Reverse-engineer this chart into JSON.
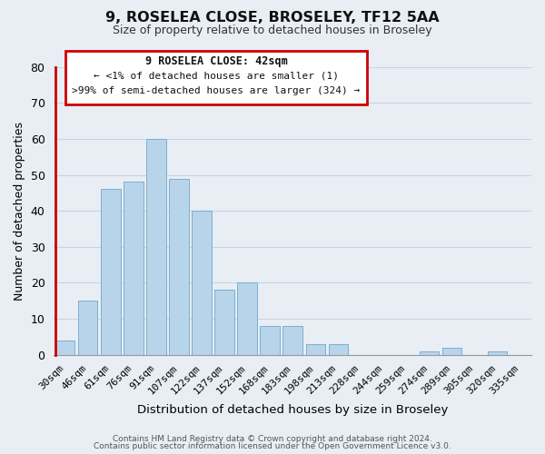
{
  "title": "9, ROSELEA CLOSE, BROSELEY, TF12 5AA",
  "subtitle": "Size of property relative to detached houses in Broseley",
  "xlabel": "Distribution of detached houses by size in Broseley",
  "ylabel": "Number of detached properties",
  "bar_labels": [
    "30sqm",
    "46sqm",
    "61sqm",
    "76sqm",
    "91sqm",
    "107sqm",
    "122sqm",
    "137sqm",
    "152sqm",
    "168sqm",
    "183sqm",
    "198sqm",
    "213sqm",
    "228sqm",
    "244sqm",
    "259sqm",
    "274sqm",
    "289sqm",
    "305sqm",
    "320sqm",
    "335sqm"
  ],
  "bar_values": [
    4,
    15,
    46,
    48,
    60,
    49,
    40,
    18,
    20,
    8,
    8,
    3,
    3,
    0,
    0,
    0,
    1,
    2,
    0,
    1,
    0
  ],
  "bar_color": "#b8d4ea",
  "bar_edge_color": "#7aafd4",
  "highlight_color": "#cc0000",
  "ylim": [
    0,
    80
  ],
  "yticks": [
    0,
    10,
    20,
    30,
    40,
    50,
    60,
    70,
    80
  ],
  "bg_color": "#e8eef4",
  "plot_bg_color": "#e8eef4",
  "grid_color": "#c8d4de",
  "annotation_title": "9 ROSELEA CLOSE: 42sqm",
  "annotation_line1": "← <1% of detached houses are smaller (1)",
  "annotation_line2": ">99% of semi-detached houses are larger (324) →",
  "footer_line1": "Contains HM Land Registry data © Crown copyright and database right 2024.",
  "footer_line2": "Contains public sector information licensed under the Open Government Licence v3.0."
}
